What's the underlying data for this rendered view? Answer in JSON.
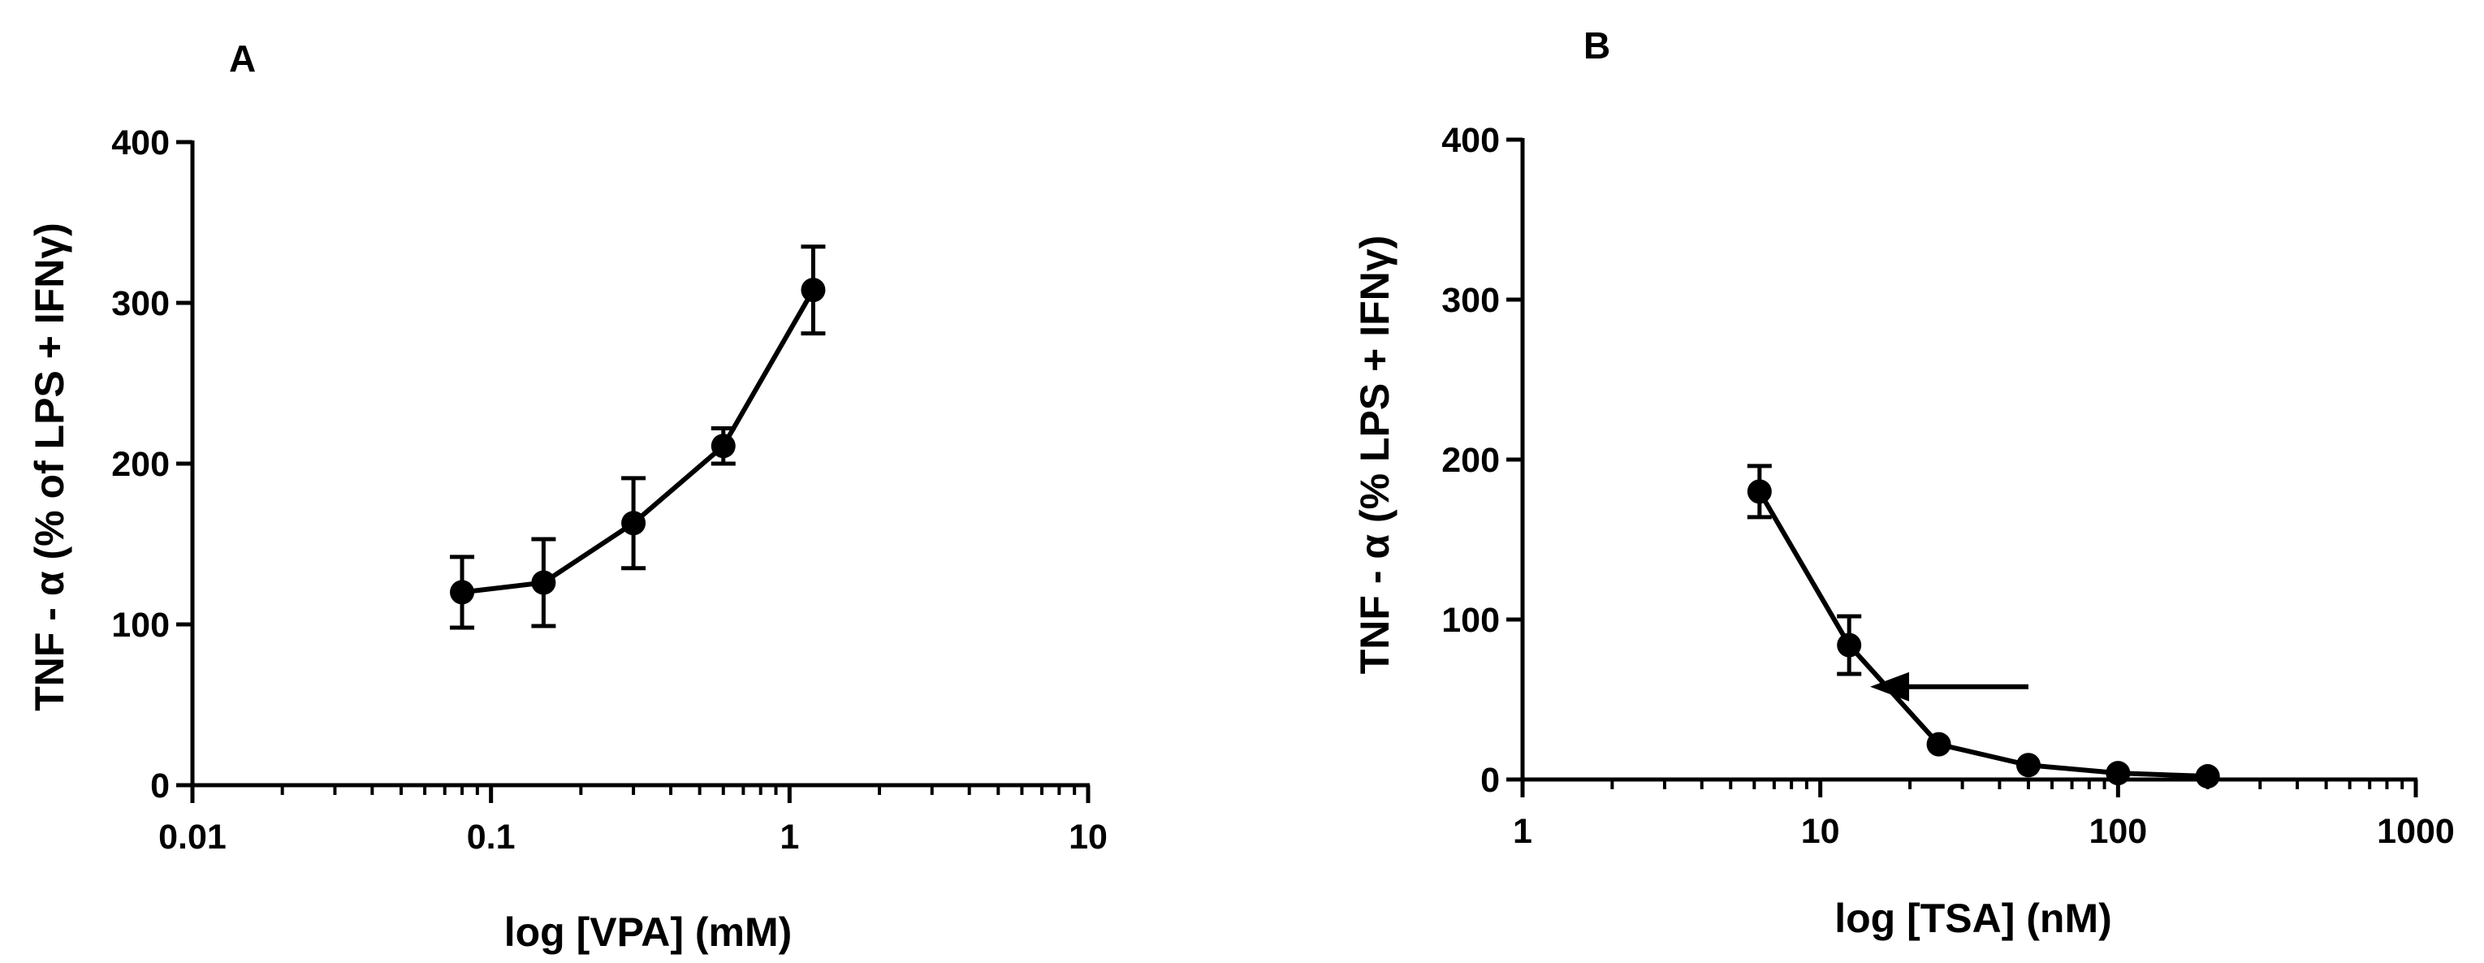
{
  "colors": {
    "ink": "#000000",
    "background": "#ffffff"
  },
  "chart_data": [
    {
      "panel": "A",
      "type": "line",
      "xscale": "log",
      "xlim": [
        0.01,
        10
      ],
      "ylim": [
        0,
        400
      ],
      "xlabel": "log [VPA] (mM)",
      "ylabel": "TNF - α (% of LPS + IFNγ)",
      "xticks": [
        0.01,
        0.1,
        1,
        10
      ],
      "xtick_labels": [
        "0.01",
        "0.1",
        "1",
        "10"
      ],
      "yticks": [
        0,
        100,
        200,
        300,
        400
      ],
      "ytick_labels": [
        "0",
        "100",
        "200",
        "300",
        "400"
      ],
      "series": [
        {
          "name": "VPA",
          "x": [
            0.08,
            0.15,
            0.3,
            0.6,
            1.2
          ],
          "y": [
            120,
            126,
            163,
            211,
            308
          ],
          "yerr": [
            22,
            27,
            28,
            11,
            27
          ]
        }
      ],
      "annotations": []
    },
    {
      "panel": "B",
      "type": "line",
      "xscale": "log",
      "xlim": [
        1,
        1000
      ],
      "ylim": [
        0,
        400
      ],
      "xlabel": "log [TSA] (nM)",
      "ylabel": "TNF - α (% LPS + IFNγ)",
      "xticks": [
        1,
        10,
        100,
        1000
      ],
      "xtick_labels": [
        "1",
        "10",
        "100",
        "1000"
      ],
      "yticks": [
        0,
        100,
        200,
        300,
        400
      ],
      "ytick_labels": [
        "0",
        "100",
        "200",
        "300",
        "400"
      ],
      "series": [
        {
          "name": "TSA",
          "x": [
            6.25,
            12.5,
            25,
            50,
            100,
            200
          ],
          "y": [
            180,
            84,
            22,
            9,
            4,
            2
          ],
          "yerr": [
            16,
            18,
            0,
            0,
            0,
            0
          ]
        }
      ],
      "annotations": [
        {
          "type": "arrow",
          "from_x": 50,
          "to_x": 14.7,
          "y": 58,
          "direction": "left"
        }
      ]
    }
  ]
}
